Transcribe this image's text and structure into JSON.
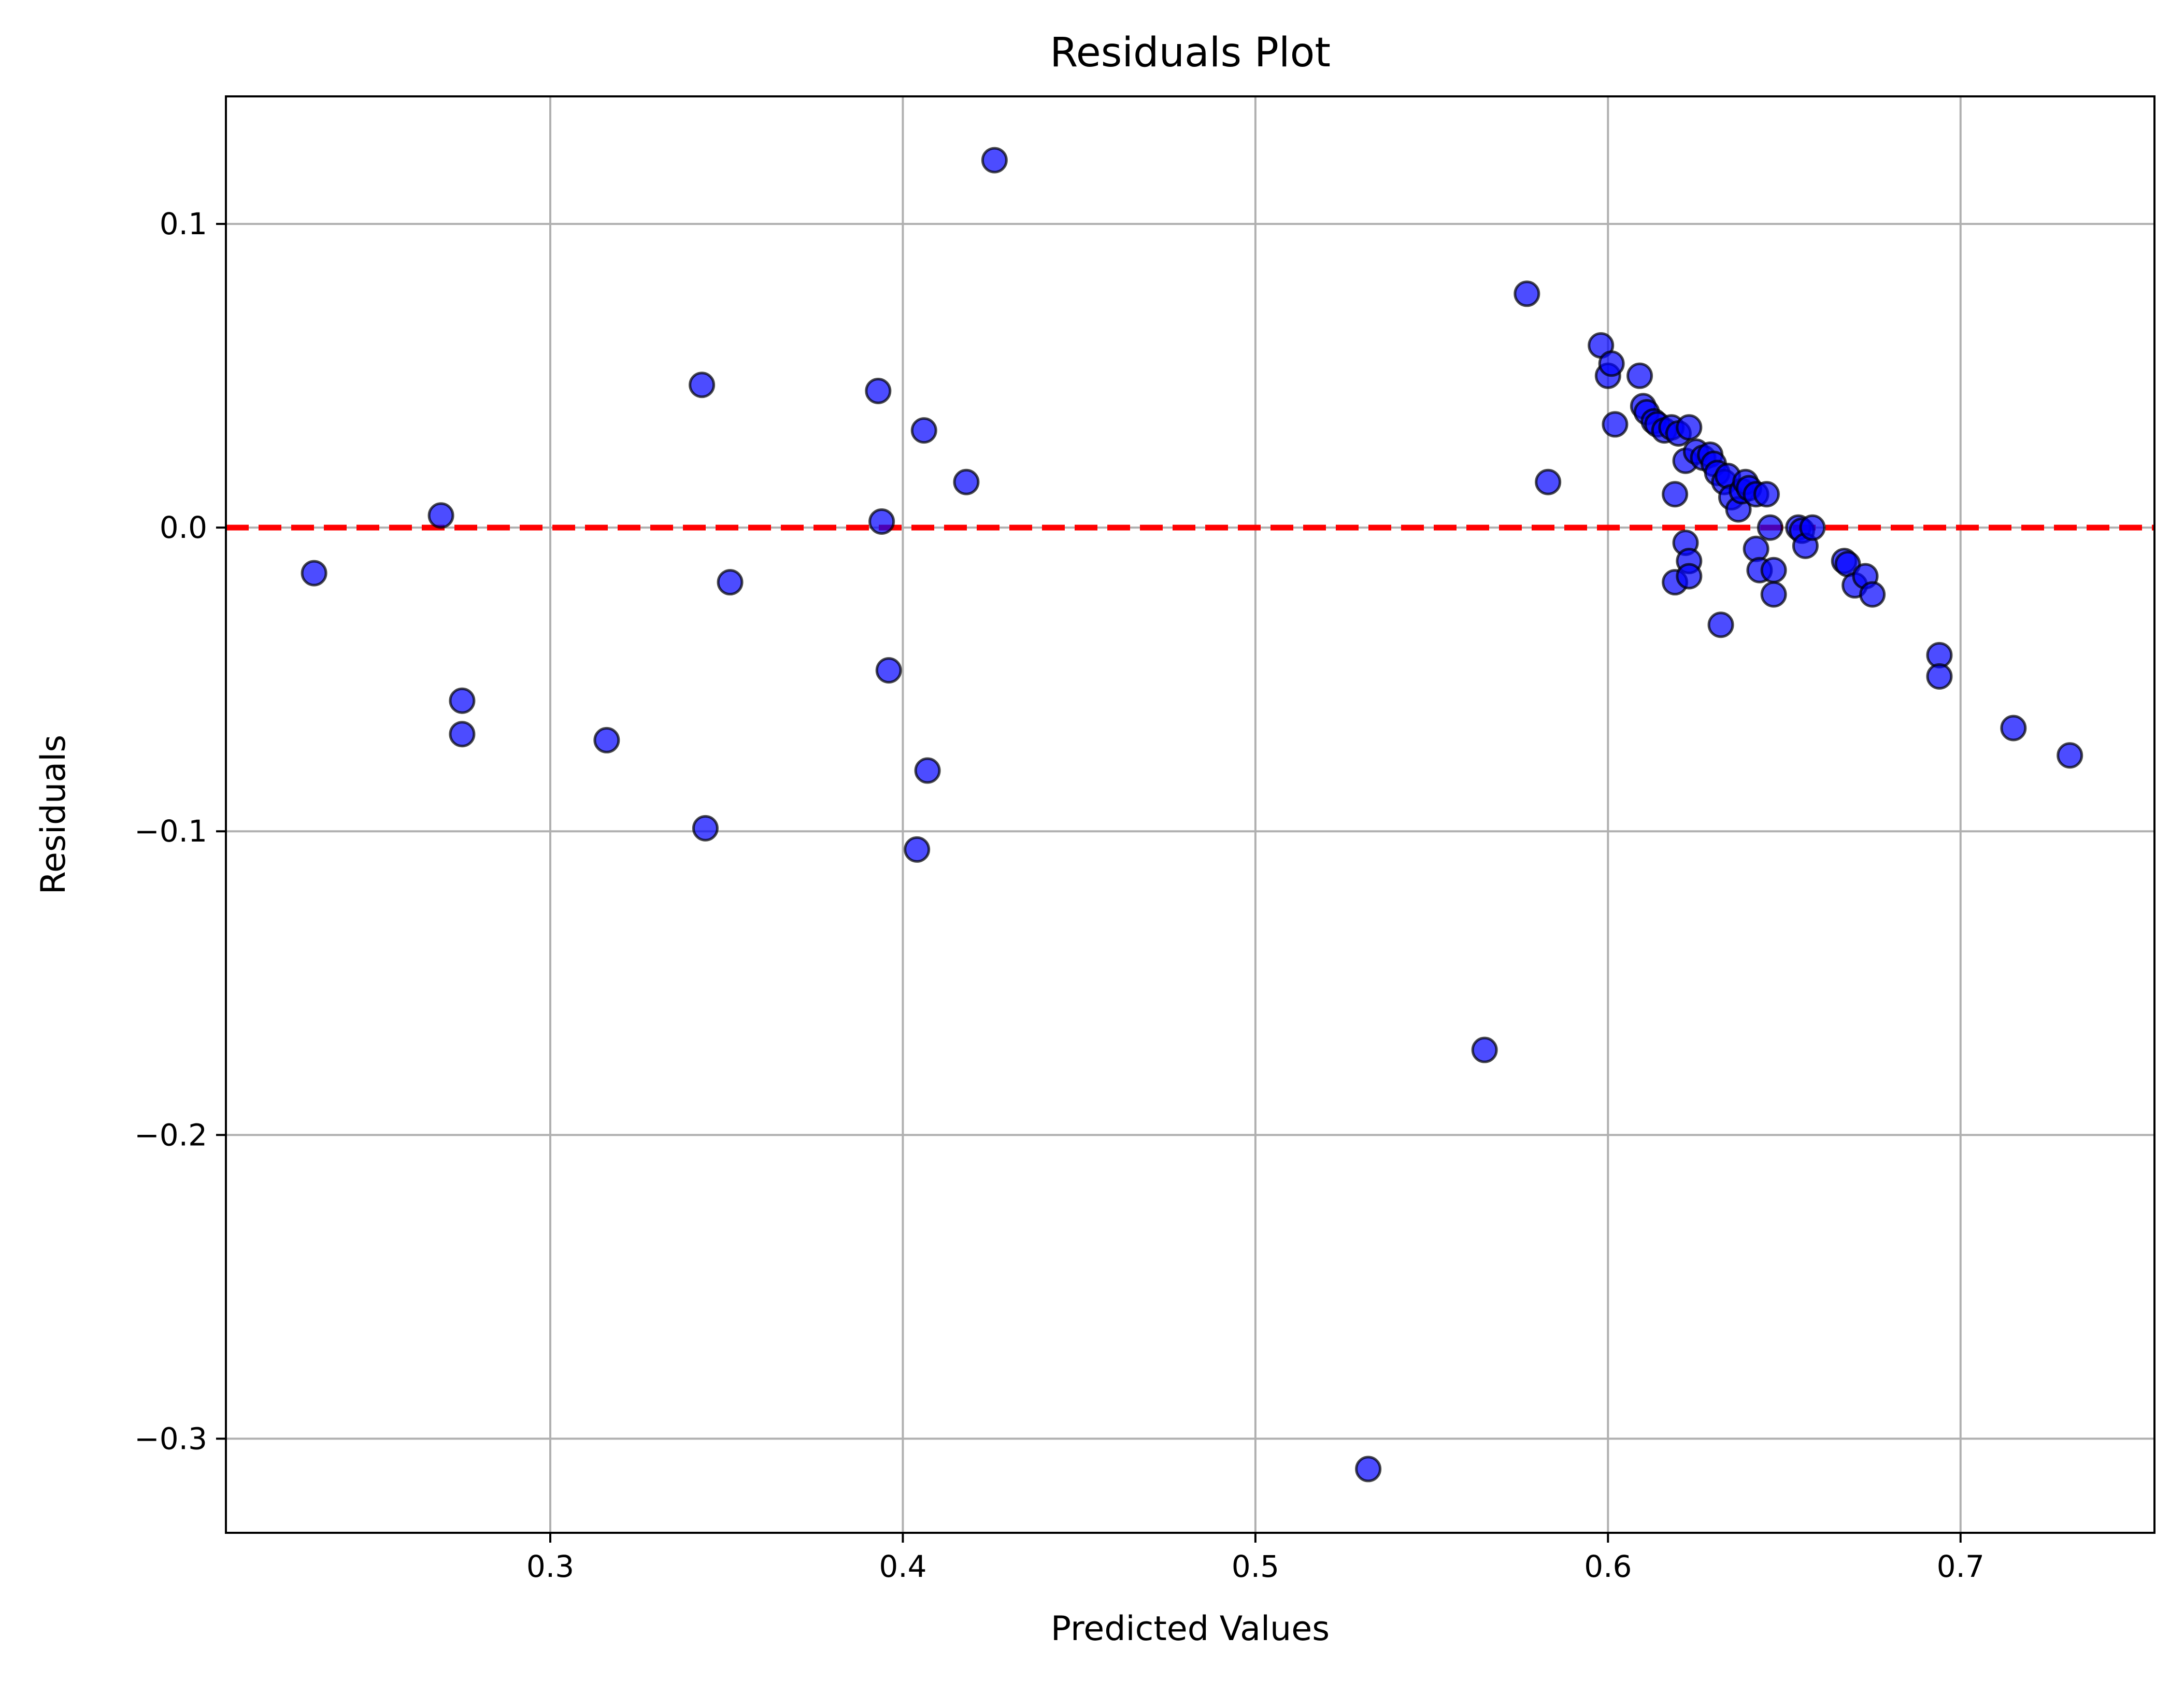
{
  "chart_data": {
    "type": "scatter",
    "title": "Residuals Plot",
    "xlabel": "Predicted Values",
    "ylabel": "Residuals",
    "xlim": [
      0.208,
      0.755
    ],
    "ylim": [
      -0.331,
      0.142
    ],
    "grid": true,
    "xticks": [
      {
        "value": 0.3,
        "label": "0.3"
      },
      {
        "value": 0.4,
        "label": "0.4"
      },
      {
        "value": 0.5,
        "label": "0.5"
      },
      {
        "value": 0.6,
        "label": "0.6"
      },
      {
        "value": 0.7,
        "label": "0.7"
      }
    ],
    "yticks": [
      {
        "value": 0.1,
        "label": "0.1"
      },
      {
        "value": 0.0,
        "label": "0.0"
      },
      {
        "value": -0.1,
        "label": "−0.1"
      },
      {
        "value": -0.2,
        "label": "−0.2"
      },
      {
        "value": -0.3,
        "label": "−0.3"
      }
    ],
    "reference_line": {
      "y": 0,
      "color": "#ff0000",
      "style": "dashed"
    },
    "marker": {
      "fill": "#0000ff",
      "opacity": 0.7,
      "edge": "#000000"
    },
    "series": [
      {
        "points": [
          [
            0.233,
            -0.015
          ],
          [
            0.269,
            0.004
          ],
          [
            0.275,
            -0.057
          ],
          [
            0.275,
            -0.068
          ],
          [
            0.316,
            -0.07
          ],
          [
            0.343,
            0.047
          ],
          [
            0.344,
            -0.099
          ],
          [
            0.351,
            -0.018
          ],
          [
            0.393,
            0.045
          ],
          [
            0.394,
            0.002
          ],
          [
            0.396,
            -0.047
          ],
          [
            0.404,
            -0.106
          ],
          [
            0.406,
            0.032
          ],
          [
            0.407,
            -0.08
          ],
          [
            0.418,
            0.015
          ],
          [
            0.426,
            0.121
          ],
          [
            0.532,
            -0.31
          ],
          [
            0.565,
            -0.172
          ],
          [
            0.577,
            0.077
          ],
          [
            0.583,
            0.015
          ],
          [
            0.598,
            0.06
          ],
          [
            0.6,
            0.05
          ],
          [
            0.601,
            0.054
          ],
          [
            0.602,
            0.034
          ],
          [
            0.609,
            0.05
          ],
          [
            0.61,
            0.04
          ],
          [
            0.611,
            0.038
          ],
          [
            0.613,
            0.035
          ],
          [
            0.614,
            0.034
          ],
          [
            0.616,
            0.032
          ],
          [
            0.618,
            0.033
          ],
          [
            0.619,
            0.011
          ],
          [
            0.619,
            -0.018
          ],
          [
            0.62,
            0.031
          ],
          [
            0.622,
            -0.005
          ],
          [
            0.622,
            0.022
          ],
          [
            0.623,
            -0.011
          ],
          [
            0.623,
            -0.016
          ],
          [
            0.623,
            0.033
          ],
          [
            0.625,
            0.025
          ],
          [
            0.627,
            0.023
          ],
          [
            0.629,
            0.024
          ],
          [
            0.63,
            0.021
          ],
          [
            0.631,
            0.018
          ],
          [
            0.632,
            -0.032
          ],
          [
            0.633,
            0.015
          ],
          [
            0.634,
            0.017
          ],
          [
            0.635,
            0.01
          ],
          [
            0.637,
            0.006
          ],
          [
            0.638,
            0.012
          ],
          [
            0.639,
            0.015
          ],
          [
            0.64,
            0.013
          ],
          [
            0.642,
            0.011
          ],
          [
            0.642,
            -0.007
          ],
          [
            0.643,
            -0.014
          ],
          [
            0.645,
            0.011
          ],
          [
            0.646,
            0.0
          ],
          [
            0.647,
            -0.014
          ],
          [
            0.647,
            -0.022
          ],
          [
            0.654,
            0.0
          ],
          [
            0.655,
            -0.001
          ],
          [
            0.656,
            -0.006
          ],
          [
            0.658,
            0.0
          ],
          [
            0.667,
            -0.011
          ],
          [
            0.668,
            -0.012
          ],
          [
            0.67,
            -0.019
          ],
          [
            0.673,
            -0.016
          ],
          [
            0.675,
            -0.022
          ],
          [
            0.694,
            -0.042
          ],
          [
            0.694,
            -0.049
          ],
          [
            0.715,
            -0.066
          ],
          [
            0.731,
            -0.075
          ]
        ]
      }
    ]
  }
}
